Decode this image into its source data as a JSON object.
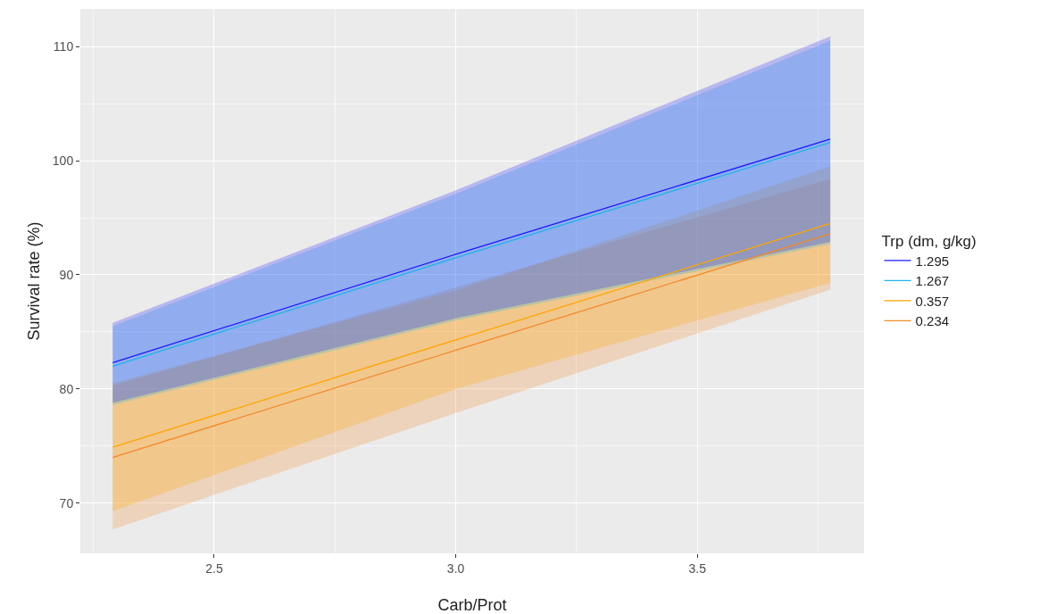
{
  "chart_data": {
    "type": "line",
    "xlabel": "Carb/Prot",
    "ylabel": "Survival rate (%)",
    "legend_title": "Trp (dm, g/kg)",
    "x": [
      2.29,
      3.0,
      3.775
    ],
    "series": [
      {
        "name": "0.234",
        "color": "#f28a2a",
        "values": [
          74.0,
          83.4,
          93.6
        ],
        "lower": [
          67.7,
          77.9,
          88.7
        ],
        "upper": [
          80.3,
          88.9,
          98.4
        ]
      },
      {
        "name": "0.357",
        "color": "#ffa500",
        "values": [
          74.9,
          84.3,
          94.5
        ],
        "lower": [
          69.3,
          80.0,
          89.3
        ],
        "upper": [
          80.5,
          88.6,
          99.5
        ]
      },
      {
        "name": "1.267",
        "color": "#1fb5e8",
        "values": [
          82.0,
          91.5,
          101.6
        ],
        "lower": [
          78.6,
          86.0,
          92.7
        ],
        "upper": [
          85.5,
          97.1,
          110.5
        ]
      },
      {
        "name": "1.295",
        "color": "#1a1aff",
        "values": [
          82.3,
          91.8,
          101.9
        ],
        "lower": [
          78.8,
          86.2,
          92.9
        ],
        "upper": [
          85.8,
          97.4,
          110.9
        ]
      }
    ],
    "xlim": [
      2.223,
      3.845
    ],
    "xticks": [
      2.5,
      {
        "value": 3,
        "label": "3.0"
      },
      3.5
    ],
    "ylim": [
      65.6,
      113.3
    ],
    "yticks": [
      70,
      80,
      90,
      100,
      110
    ],
    "grid": true,
    "legend": "right",
    "line_style": "solid",
    "marker": "none"
  }
}
